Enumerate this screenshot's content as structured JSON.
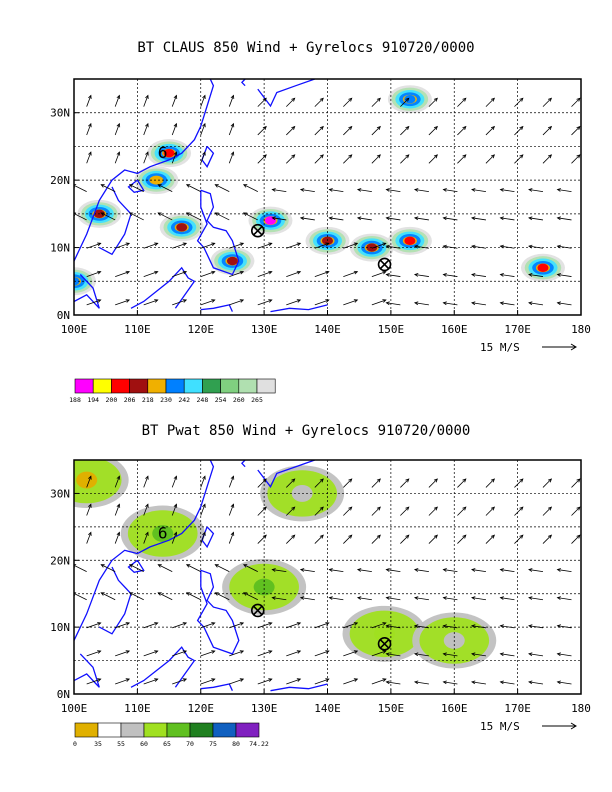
{
  "chart_data": [
    {
      "type": "heatmap",
      "title": "BT CLAUS 850 Wind + Gyrelocs 910720/0000",
      "xlim": [
        100,
        180
      ],
      "ylim": [
        0,
        35
      ],
      "x_ticks": [
        "100E",
        "110E",
        "120E",
        "130E",
        "140E",
        "150E",
        "160E",
        "170E",
        "180"
      ],
      "y_ticks": [
        "0N",
        "10N",
        "20N",
        "30N"
      ],
      "reference_vector_label": "15 M/S",
      "colorbar_values": [
        "188",
        "194",
        "200",
        "206",
        "218",
        "230",
        "242",
        "248",
        "254",
        "260",
        "265"
      ],
      "colorbar_colors": [
        "#ff00ff",
        "#ffff00",
        "#ff0000",
        "#a01010",
        "#f0b000",
        "#0080ff",
        "#40e0ff",
        "#30a050",
        "#80d080",
        "#b0e0b0",
        "#e0e0e0"
      ],
      "gyre_markers": [
        {
          "lon": 129,
          "lat": 12.5
        },
        {
          "lon": 149,
          "lat": 7.5
        }
      ],
      "typhoon_marker": {
        "lon": 114,
        "lat": 24,
        "label": "6"
      },
      "grid": true,
      "contour_regions": [
        {
          "lon": 115,
          "lat": 24,
          "value": 200
        },
        {
          "lon": 113,
          "lat": 20,
          "value": 218
        },
        {
          "lon": 104,
          "lat": 15,
          "value": 206
        },
        {
          "lon": 117,
          "lat": 13,
          "value": 206
        },
        {
          "lon": 131,
          "lat": 14,
          "value": 188
        },
        {
          "lon": 140,
          "lat": 11,
          "value": 206
        },
        {
          "lon": 147,
          "lat": 10,
          "value": 206
        },
        {
          "lon": 153,
          "lat": 11,
          "value": 200
        },
        {
          "lon": 125,
          "lat": 8,
          "value": 206
        },
        {
          "lon": 174,
          "lat": 7,
          "value": 200
        },
        {
          "lon": 153,
          "lat": 32,
          "value": 230
        },
        {
          "lon": 100,
          "lat": 5,
          "value": 230
        }
      ]
    },
    {
      "type": "heatmap",
      "title": "BT Pwat 850 Wind + Gyrelocs 910720/0000",
      "xlim": [
        100,
        180
      ],
      "ylim": [
        0,
        35
      ],
      "x_ticks": [
        "100E",
        "110E",
        "120E",
        "130E",
        "140E",
        "150E",
        "160E",
        "170E",
        "180"
      ],
      "y_ticks": [
        "0N",
        "10N",
        "20N",
        "30N"
      ],
      "reference_vector_label": "15 M/S",
      "colorbar_values": [
        "0",
        "35",
        "55",
        "60",
        "65",
        "70",
        "75",
        "80",
        "74.22"
      ],
      "colorbar_colors": [
        "#e0b000",
        "#ffffff",
        "#c0c0c0",
        "#a0e020",
        "#60c020",
        "#208020",
        "#1060c0",
        "#8020c0"
      ],
      "gyre_markers": [
        {
          "lon": 129,
          "lat": 12.5
        },
        {
          "lon": 149,
          "lat": 7.5
        }
      ],
      "typhoon_marker": {
        "lon": 114,
        "lat": 24,
        "label": "6"
      },
      "grid": true,
      "contour_regions": [
        {
          "lon": 114,
          "lat": 24,
          "value": 65
        },
        {
          "lon": 130,
          "lat": 16,
          "value": 65
        },
        {
          "lon": 149,
          "lat": 9,
          "value": 60
        },
        {
          "lon": 102,
          "lat": 32,
          "value": 0
        },
        {
          "lon": 136,
          "lat": 30,
          "value": 55
        },
        {
          "lon": 160,
          "lat": 8,
          "value": 55
        }
      ]
    }
  ]
}
